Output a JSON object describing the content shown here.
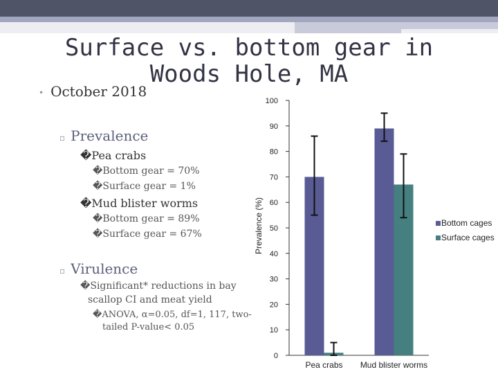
{
  "slide": {
    "title": "Surface vs. bottom gear in Woods Hole, MA",
    "bullets": {
      "date": "October 2018",
      "prevalence": "Prevalence",
      "pea_crabs": "Pea crabs",
      "pea_bottom": "Bottom gear = 70%",
      "pea_surface": "Surface gear = 1%",
      "mud_worms": "Mud blister worms",
      "mud_bottom": "Bottom gear = 89%",
      "mud_surface": "Surface gear = 67%",
      "virulence": "Virulence",
      "sig_line1": "Significant* reductions in bay",
      "sig_line2": "scallop CI and meat yield",
      "anova_line1": "ANOVA, α=0.05, df=1, 117, two-",
      "anova_line2": "tailed P-value< 0.05"
    },
    "markers": {
      "l1": "•",
      "l2": "▫",
      "l3": "�",
      "l4": "�"
    }
  },
  "chart_data": {
    "type": "bar",
    "categories": [
      "Pea crabs",
      "Mud blister worms"
    ],
    "series": [
      {
        "name": "Bottom cages",
        "values": [
          70,
          89
        ],
        "error_low": [
          55,
          84
        ],
        "error_high": [
          86,
          95
        ],
        "color": "#595b95"
      },
      {
        "name": "Surface cages",
        "values": [
          1,
          67
        ],
        "error_low": [
          0,
          54
        ],
        "error_high": [
          5,
          79
        ],
        "color": "#467f80"
      }
    ],
    "ylabel": "Prevalence (%)",
    "xlabel": "",
    "ylim": [
      0,
      100
    ],
    "yticks": [
      0,
      10,
      20,
      30,
      40,
      50,
      60,
      70,
      80,
      90,
      100
    ],
    "grid": false,
    "legend_position": "right"
  }
}
